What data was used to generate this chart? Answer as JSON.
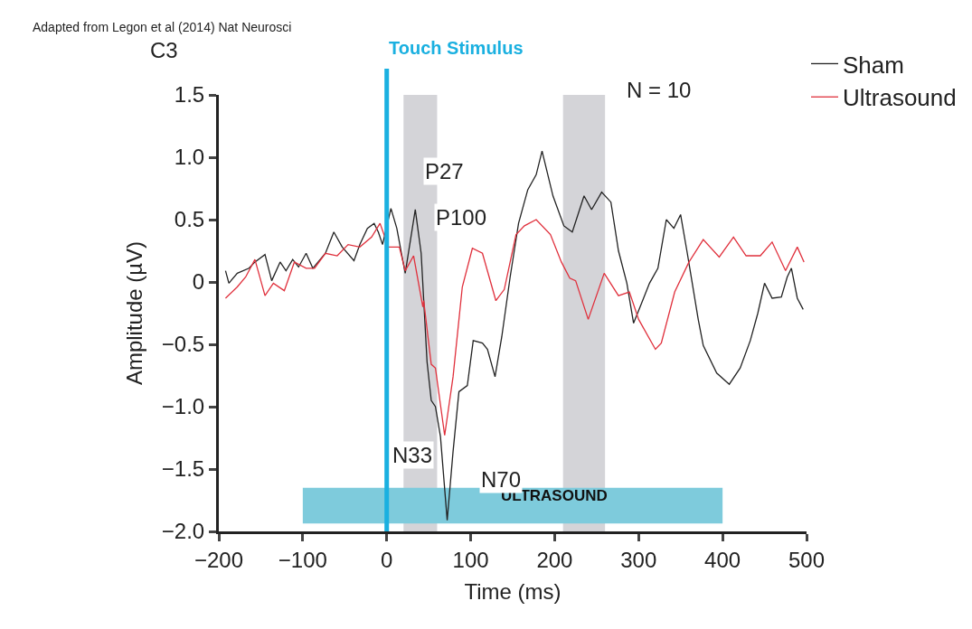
{
  "chart_data": {
    "type": "line",
    "xlabel": "Time (ms)",
    "ylabel": "Amplitude (µV)",
    "xlim": [
      -200,
      500
    ],
    "xticks": [
      {
        "value": -200,
        "label": "−200"
      },
      {
        "value": -100,
        "label": "−100"
      },
      0,
      100,
      200,
      300,
      400,
      500
    ],
    "ylim": [
      -2.0,
      1.5
    ],
    "yticks": [
      {
        "value": -2.0,
        "label": "−2.0"
      },
      {
        "value": -1.5,
        "label": "−1.5"
      },
      {
        "value": -1.0,
        "label": "−1.0"
      },
      {
        "value": -0.5,
        "label": "−0.5"
      },
      0,
      0.5,
      {
        "value": 1.0,
        "label": "1.0"
      },
      1.5
    ],
    "grid": false,
    "legend": "top right",
    "line_style": "solid",
    "marker": "none",
    "series": [
      {
        "name": "Sham",
        "color": "#222222",
        "x": [
          -192,
          -188,
          -178,
          -164,
          -157,
          -145,
          -137,
          -127,
          -120,
          -112,
          -105,
          -96,
          -88,
          -73,
          -63,
          -53,
          -39,
          -32,
          -23,
          -15,
          -10,
          -5,
          5,
          12,
          22,
          34,
          41,
          48,
          53,
          58,
          64,
          72,
          79,
          86,
          96,
          103,
          114,
          120,
          129,
          137,
          147,
          157,
          168,
          178,
          185,
          198,
          211,
          221,
          235,
          244,
          256,
          267,
          276,
          286,
          294,
          303,
          313,
          323,
          333,
          342,
          350,
          358,
          371,
          377,
          393,
          408,
          421,
          433,
          442,
          450,
          459,
          470,
          477,
          482,
          489,
          496
        ],
        "values": [
          0.09,
          -0.01,
          0.07,
          0.11,
          0.16,
          0.22,
          0.01,
          0.16,
          0.09,
          0.18,
          0.12,
          0.23,
          0.11,
          0.23,
          0.4,
          0.28,
          0.17,
          0.3,
          0.43,
          0.47,
          0.4,
          0.3,
          0.59,
          0.43,
          0.07,
          0.58,
          0.23,
          -0.64,
          -0.95,
          -1.0,
          -1.24,
          -1.91,
          -1.36,
          -0.88,
          -0.83,
          -0.47,
          -0.49,
          -0.54,
          -0.76,
          -0.44,
          0.04,
          0.47,
          0.74,
          0.86,
          1.05,
          0.69,
          0.45,
          0.4,
          0.69,
          0.58,
          0.72,
          0.64,
          0.25,
          -0.01,
          -0.33,
          -0.18,
          -0.01,
          0.11,
          0.5,
          0.43,
          0.54,
          0.23,
          -0.3,
          -0.51,
          -0.73,
          -0.82,
          -0.69,
          -0.47,
          -0.25,
          -0.01,
          -0.13,
          -0.12,
          0.04,
          0.11,
          -0.13,
          -0.22
        ]
      },
      {
        "name": "Ultrasound",
        "color": "#e0303c",
        "x": [
          -192,
          -178,
          -168,
          -157,
          -145,
          -135,
          -122,
          -110,
          -96,
          -86,
          -73,
          -59,
          -46,
          -32,
          -18,
          -8,
          2,
          15,
          22,
          32,
          43,
          44,
          53,
          58,
          69,
          79,
          90,
          102,
          114,
          130,
          140,
          154,
          164,
          178,
          195,
          208,
          218,
          225,
          240,
          259,
          276,
          289,
          300,
          320,
          327,
          343,
          360,
          377,
          396,
          413,
          428,
          445,
          459,
          475,
          489,
          497
        ],
        "values": [
          -0.13,
          -0.04,
          0.04,
          0.18,
          -0.11,
          -0.01,
          -0.07,
          0.16,
          0.11,
          0.11,
          0.23,
          0.21,
          0.3,
          0.28,
          0.36,
          0.47,
          0.28,
          0.28,
          0.09,
          0.21,
          -0.2,
          -0.15,
          -0.66,
          -0.69,
          -1.23,
          -0.76,
          -0.04,
          0.27,
          0.23,
          -0.15,
          -0.06,
          0.38,
          0.45,
          0.5,
          0.38,
          0.16,
          0.03,
          0.01,
          -0.3,
          0.07,
          -0.11,
          -0.08,
          -0.3,
          -0.54,
          -0.49,
          -0.08,
          0.16,
          0.34,
          0.2,
          0.36,
          0.21,
          0.21,
          0.32,
          0.09,
          0.28,
          0.16
        ]
      }
    ],
    "ref_lines": [
      {
        "axis": "x",
        "value": 0,
        "label": "Touch Stimulus",
        "color": "#1ab0e0"
      }
    ],
    "bands": [
      {
        "axis": "x",
        "from": 20,
        "to": 60,
        "color": "#d4d4d8"
      },
      {
        "axis": "x",
        "from": 210,
        "to": 260,
        "color": "#d4d4d8"
      },
      {
        "axis": "x",
        "from": -100,
        "to": 400,
        "label": "ULTRASOUND",
        "color": "#7ecbdc"
      }
    ],
    "annotations": [
      "Adapted from Legon et al (2014) Nat Neurosci",
      "C3",
      "N = 10",
      {
        "text": "P27",
        "x": 35,
        "y": 0.58
      },
      {
        "text": "P100",
        "x": 102,
        "y": 0.27
      },
      {
        "text": "N33",
        "x": 69,
        "y": -1.23
      },
      {
        "text": "N70",
        "x": 72,
        "y": -1.91
      }
    ]
  }
}
